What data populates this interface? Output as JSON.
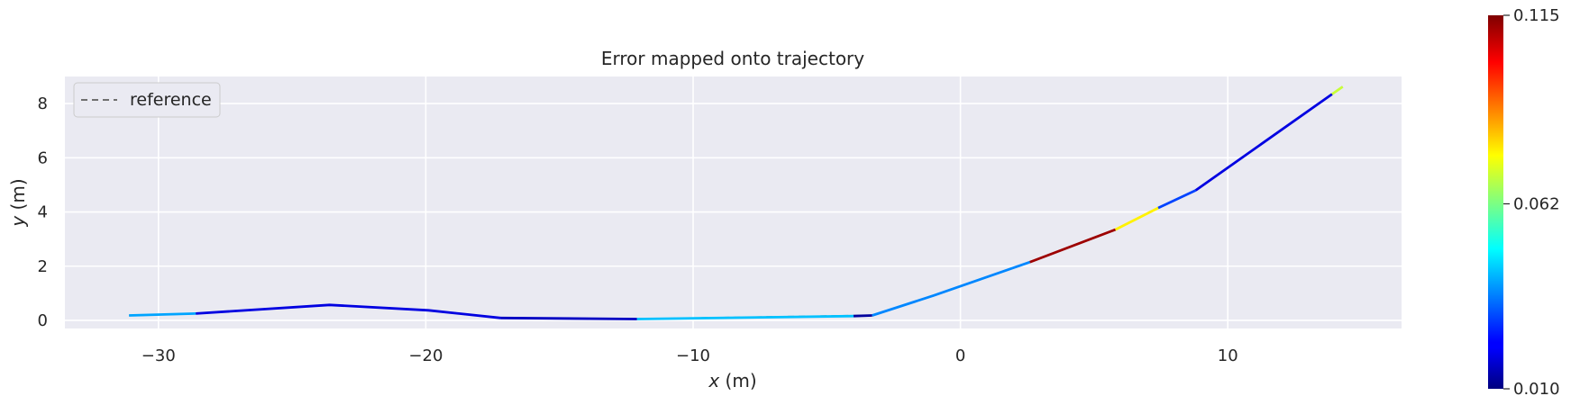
{
  "chart_data": {
    "type": "line",
    "title": "Error mapped onto trajectory",
    "xlabel_var": "x",
    "xlabel_unit": " (m)",
    "ylabel_var": "y",
    "ylabel_unit": " (m)",
    "xlim": [
      -33.5,
      16.5
    ],
    "ylim": [
      -0.3,
      9.0
    ],
    "xticks": [
      -30,
      -20,
      -10,
      0,
      10
    ],
    "xtick_labels": [
      "−30",
      "−20",
      "−10",
      "0",
      "10"
    ],
    "yticks": [
      0,
      2,
      4,
      6,
      8
    ],
    "ytick_labels": [
      "0",
      "2",
      "4",
      "6",
      "8"
    ],
    "grid": true,
    "legend": {
      "placement": "upper-left",
      "entries": [
        "reference"
      ]
    },
    "reference": {
      "name": "reference",
      "style": "dashed",
      "color": "#6f6f6f",
      "points": [
        [
          -31.1,
          0.18
        ],
        [
          -28.6,
          0.25
        ],
        [
          -23.6,
          0.57
        ],
        [
          -19.9,
          0.37
        ],
        [
          -17.2,
          0.09
        ],
        [
          -12.1,
          0.05
        ],
        [
          -3.3,
          0.18
        ],
        [
          -1.0,
          0.92
        ],
        [
          2.6,
          2.15
        ],
        [
          5.8,
          3.35
        ],
        [
          7.4,
          4.15
        ],
        [
          8.8,
          4.8
        ],
        [
          13.9,
          8.35
        ],
        [
          14.3,
          8.62
        ]
      ]
    },
    "trajectory": {
      "segments": [
        {
          "points": [
            [
              -31.1,
              0.18
            ],
            [
              -28.6,
              0.25
            ]
          ],
          "error": 0.04
        },
        {
          "points": [
            [
              -28.6,
              0.25
            ],
            [
              -23.6,
              0.57
            ],
            [
              -19.9,
              0.37
            ],
            [
              -17.2,
              0.09
            ]
          ],
          "error": 0.02
        },
        {
          "points": [
            [
              -17.2,
              0.09
            ],
            [
              -12.1,
              0.05
            ]
          ],
          "error": 0.017
        },
        {
          "points": [
            [
              -12.1,
              0.05
            ],
            [
              -4.0,
              0.16
            ]
          ],
          "error": 0.043
        },
        {
          "points": [
            [
              -4.0,
              0.16
            ],
            [
              -3.3,
              0.18
            ]
          ],
          "error": 0.013
        },
        {
          "points": [
            [
              -3.3,
              0.18
            ],
            [
              -1.0,
              0.92
            ],
            [
              2.6,
              2.15
            ]
          ],
          "error": 0.037
        },
        {
          "points": [
            [
              2.6,
              2.15
            ],
            [
              5.8,
              3.35
            ]
          ],
          "error": 0.112
        },
        {
          "points": [
            [
              5.8,
              3.35
            ],
            [
              7.4,
              4.15
            ]
          ],
          "error": 0.077
        },
        {
          "points": [
            [
              7.4,
              4.15
            ],
            [
              8.8,
              4.8
            ]
          ],
          "error": 0.03
        },
        {
          "points": [
            [
              8.8,
              4.8
            ],
            [
              13.9,
              8.35
            ]
          ],
          "error": 0.02
        },
        {
          "points": [
            [
              13.9,
              8.35
            ],
            [
              14.3,
              8.62
            ]
          ],
          "error": 0.07
        }
      ]
    },
    "colorbar": {
      "colormap": "jet",
      "min": 0.01,
      "max": 0.115,
      "ticks": [
        0.01,
        0.062,
        0.115
      ],
      "tick_labels": [
        "0.010",
        "0.062",
        "0.115"
      ]
    }
  }
}
